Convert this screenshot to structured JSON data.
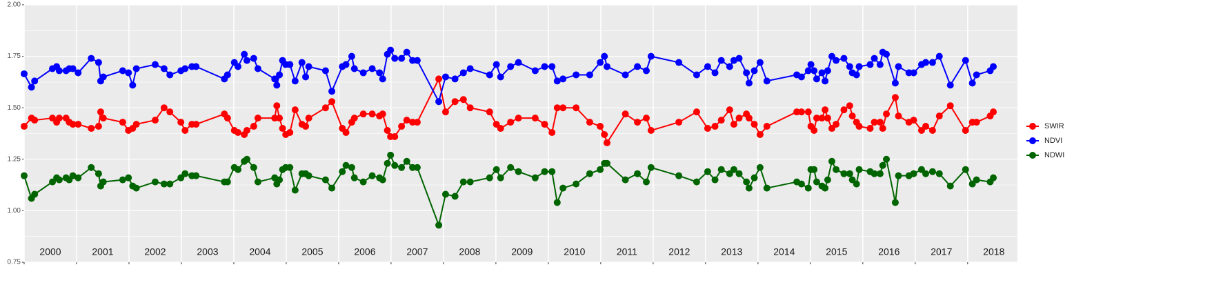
{
  "chart_data": {
    "type": "line",
    "x": [
      2000.0,
      2000.14,
      2000.2,
      2000.54,
      2000.62,
      2000.67,
      2000.8,
      2000.86,
      2000.93,
      2001.03,
      2001.28,
      2001.42,
      2001.46,
      2001.51,
      2001.88,
      2001.99,
      2002.07,
      2002.14,
      2002.5,
      2002.67,
      2002.78,
      2002.99,
      2003.07,
      2003.2,
      2003.28,
      2003.82,
      2003.88,
      2004.01,
      2004.08,
      2004.2,
      2004.25,
      2004.38,
      2004.46,
      2004.78,
      2004.82,
      2004.87,
      2004.93,
      2004.99,
      2005.07,
      2005.17,
      2005.3,
      2005.37,
      2005.43,
      2005.75,
      2005.87,
      2006.07,
      2006.14,
      2006.25,
      2006.3,
      2006.47,
      2006.64,
      2006.78,
      2006.84,
      2006.93,
      2006.99,
      2007.07,
      2007.2,
      2007.3,
      2007.41,
      2007.5,
      2007.91,
      2008.04,
      2008.22,
      2008.38,
      2008.51,
      2008.88,
      2009.01,
      2009.09,
      2009.28,
      2009.43,
      2009.75,
      2009.93,
      2010.07,
      2010.17,
      2010.28,
      2010.53,
      2010.79,
      2010.99,
      2011.07,
      2011.12,
      2011.47,
      2011.7,
      2011.87,
      2011.96,
      2012.49,
      2012.83,
      2013.04,
      2013.18,
      2013.3,
      2013.46,
      2013.54,
      2013.64,
      2013.78,
      2013.83,
      2013.93,
      2014.04,
      2014.17,
      2014.74,
      2014.83,
      2014.96,
      2015.01,
      2015.07,
      2015.12,
      2015.22,
      2015.28,
      2015.33,
      2015.41,
      2015.49,
      2015.64,
      2015.75,
      2015.8,
      2015.88,
      2015.93,
      2016.14,
      2016.22,
      2016.33,
      2016.38,
      2016.45,
      2016.62,
      2016.68,
      2016.88,
      2016.97,
      2017.12,
      2017.2,
      2017.33,
      2017.46,
      2017.67,
      2017.96,
      2018.09,
      2018.17,
      2018.43,
      2018.49
    ],
    "series": [
      {
        "name": "NDWI",
        "color": "#006400",
        "values": [
          1.17,
          1.06,
          1.08,
          1.14,
          1.16,
          1.15,
          1.16,
          1.15,
          1.17,
          1.16,
          1.21,
          1.18,
          1.12,
          1.14,
          1.15,
          1.16,
          1.12,
          1.11,
          1.14,
          1.13,
          1.13,
          1.16,
          1.18,
          1.17,
          1.17,
          1.14,
          1.14,
          1.21,
          1.2,
          1.24,
          1.25,
          1.21,
          1.14,
          1.16,
          1.13,
          1.15,
          1.2,
          1.21,
          1.21,
          1.1,
          1.18,
          1.18,
          1.17,
          1.15,
          1.11,
          1.19,
          1.22,
          1.21,
          1.16,
          1.14,
          1.17,
          1.16,
          1.15,
          1.23,
          1.27,
          1.22,
          1.21,
          1.24,
          1.21,
          1.21,
          0.93,
          1.08,
          1.07,
          1.14,
          1.14,
          1.16,
          1.2,
          1.16,
          1.21,
          1.19,
          1.16,
          1.19,
          1.19,
          1.04,
          1.11,
          1.13,
          1.18,
          1.2,
          1.23,
          1.23,
          1.15,
          1.18,
          1.14,
          1.21,
          1.17,
          1.14,
          1.19,
          1.15,
          1.2,
          1.18,
          1.2,
          1.18,
          1.14,
          1.11,
          1.16,
          1.21,
          1.11,
          1.14,
          1.13,
          1.11,
          1.2,
          1.2,
          1.14,
          1.12,
          1.11,
          1.15,
          1.24,
          1.2,
          1.18,
          1.18,
          1.15,
          1.13,
          1.2,
          1.19,
          1.18,
          1.18,
          1.22,
          1.25,
          1.04,
          1.17,
          1.17,
          1.18,
          1.2,
          1.18,
          1.19,
          1.18,
          1.12,
          1.2,
          1.13,
          1.15,
          1.14,
          1.16
        ]
      },
      {
        "name": "SWIR",
        "color": "#ff0000",
        "values": [
          1.41,
          1.45,
          1.44,
          1.45,
          1.43,
          1.45,
          1.45,
          1.43,
          1.42,
          1.42,
          1.4,
          1.41,
          1.48,
          1.45,
          1.43,
          1.39,
          1.4,
          1.42,
          1.44,
          1.5,
          1.48,
          1.43,
          1.39,
          1.42,
          1.42,
          1.47,
          1.45,
          1.39,
          1.38,
          1.37,
          1.39,
          1.41,
          1.45,
          1.45,
          1.51,
          1.45,
          1.4,
          1.37,
          1.38,
          1.49,
          1.42,
          1.41,
          1.45,
          1.5,
          1.53,
          1.4,
          1.38,
          1.43,
          1.45,
          1.47,
          1.47,
          1.46,
          1.47,
          1.39,
          1.36,
          1.36,
          1.41,
          1.44,
          1.43,
          1.43,
          1.64,
          1.48,
          1.53,
          1.54,
          1.5,
          1.48,
          1.42,
          1.4,
          1.43,
          1.45,
          1.45,
          1.42,
          1.38,
          1.5,
          1.5,
          1.5,
          1.43,
          1.41,
          1.37,
          1.33,
          1.47,
          1.43,
          1.45,
          1.39,
          1.43,
          1.48,
          1.4,
          1.41,
          1.44,
          1.49,
          1.42,
          1.45,
          1.47,
          1.45,
          1.42,
          1.37,
          1.41,
          1.48,
          1.48,
          1.48,
          1.41,
          1.39,
          1.45,
          1.45,
          1.49,
          1.45,
          1.4,
          1.42,
          1.49,
          1.51,
          1.46,
          1.43,
          1.41,
          1.4,
          1.43,
          1.43,
          1.4,
          1.47,
          1.55,
          1.46,
          1.43,
          1.44,
          1.39,
          1.41,
          1.39,
          1.46,
          1.51,
          1.39,
          1.43,
          1.43,
          1.46,
          1.48
        ]
      },
      {
        "name": "NDVI",
        "color": "#0000ff",
        "values": [
          1.665,
          1.6,
          1.63,
          1.69,
          1.7,
          1.68,
          1.68,
          1.69,
          1.69,
          1.67,
          1.74,
          1.72,
          1.63,
          1.65,
          1.68,
          1.67,
          1.61,
          1.69,
          1.71,
          1.69,
          1.66,
          1.68,
          1.69,
          1.7,
          1.7,
          1.64,
          1.66,
          1.72,
          1.7,
          1.76,
          1.73,
          1.74,
          1.69,
          1.64,
          1.61,
          1.66,
          1.73,
          1.71,
          1.71,
          1.63,
          1.72,
          1.65,
          1.7,
          1.68,
          1.58,
          1.7,
          1.71,
          1.75,
          1.69,
          1.67,
          1.69,
          1.67,
          1.64,
          1.76,
          1.78,
          1.74,
          1.74,
          1.77,
          1.73,
          1.73,
          1.53,
          1.65,
          1.64,
          1.67,
          1.69,
          1.66,
          1.71,
          1.65,
          1.7,
          1.72,
          1.68,
          1.7,
          1.7,
          1.63,
          1.64,
          1.66,
          1.66,
          1.72,
          1.75,
          1.7,
          1.66,
          1.7,
          1.68,
          1.75,
          1.72,
          1.66,
          1.7,
          1.67,
          1.73,
          1.7,
          1.73,
          1.74,
          1.67,
          1.62,
          1.68,
          1.72,
          1.63,
          1.66,
          1.65,
          1.68,
          1.71,
          1.68,
          1.64,
          1.67,
          1.63,
          1.68,
          1.75,
          1.73,
          1.74,
          1.7,
          1.67,
          1.66,
          1.7,
          1.71,
          1.74,
          1.71,
          1.77,
          1.76,
          1.62,
          1.7,
          1.67,
          1.67,
          1.71,
          1.72,
          1.72,
          1.75,
          1.61,
          1.73,
          1.62,
          1.66,
          1.68,
          1.7
        ]
      }
    ],
    "legend_order": [
      "SWIR",
      "NDVI",
      "NDWI"
    ],
    "xlim": [
      2000,
      2018.95
    ],
    "xticks": [
      2000,
      2001,
      2002,
      2003,
      2004,
      2005,
      2006,
      2007,
      2008,
      2009,
      2010,
      2011,
      2012,
      2013,
      2014,
      2015,
      2016,
      2017,
      2018
    ],
    "ylim": [
      0.75,
      2.0
    ],
    "yticks": [
      {
        "value": 0.75,
        "label": "0.75"
      },
      {
        "value": 1.0,
        "label": "1.00"
      },
      {
        "value": 1.25,
        "label": "1.25"
      },
      {
        "value": 1.5,
        "label": "1.50"
      },
      {
        "value": 1.75,
        "label": "1.75"
      },
      {
        "value": 2.0,
        "label": "2.00"
      }
    ],
    "grid": true,
    "legend": "right"
  }
}
